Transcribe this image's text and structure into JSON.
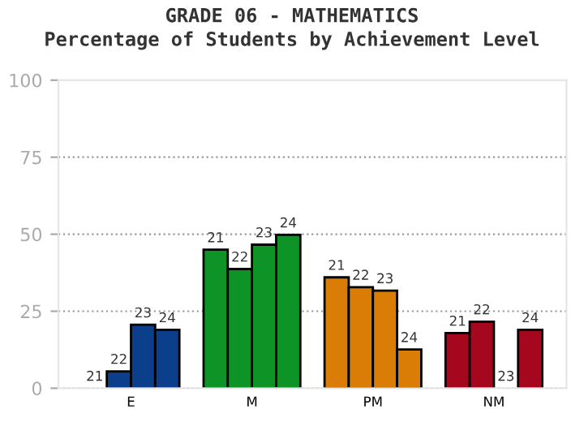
{
  "chart_data": {
    "type": "bar",
    "title": "GRADE 06 - MATHEMATICS",
    "subtitle": "Percentage of Students by Achievement Level",
    "categories": [
      "E",
      "M",
      "PM",
      "NM"
    ],
    "series": [
      {
        "name": "21",
        "colors": [
          "#0b3f8c",
          "#0e9426",
          "#d97d06",
          "#a5071f"
        ],
        "values": [
          0,
          45,
          36,
          17.9
        ]
      },
      {
        "name": "22",
        "colors": [
          "#0b3f8c",
          "#0e9426",
          "#d97d06",
          "#a5071f"
        ],
        "values": [
          5.5,
          38.7,
          32.8,
          21.6
        ]
      },
      {
        "name": "23",
        "colors": [
          "#0b3f8c",
          "#0e9426",
          "#d97d06",
          "#a5071f"
        ],
        "values": [
          20.6,
          46.6,
          31.7,
          0
        ]
      },
      {
        "name": "24",
        "colors": [
          "#0b3f8c",
          "#0e9426",
          "#d97d06",
          "#a5071f"
        ],
        "values": [
          19,
          49.8,
          12.6,
          19
        ]
      }
    ],
    "ylim": [
      0,
      100
    ],
    "yticks": [
      0,
      25,
      50,
      75,
      100
    ],
    "grid": "y",
    "legend": false
  }
}
